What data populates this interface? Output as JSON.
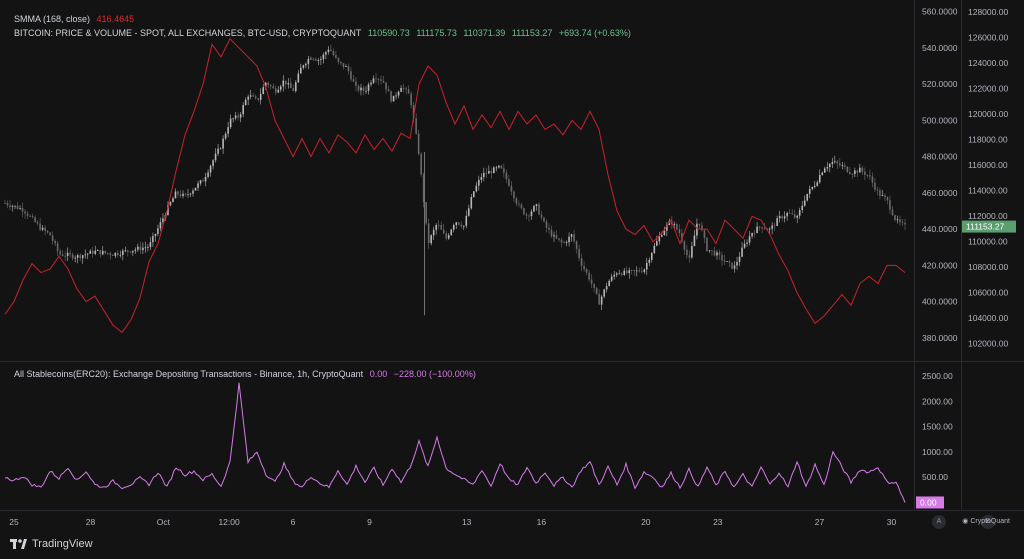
{
  "header": {
    "smma_label": "SMMA (168, close)",
    "smma_value": "416.4645",
    "symbol": "BITCOIN: PRICE & VOLUME - SPOT, ALL EXCHANGES, BTC-USD, CRYPTOQUANT",
    "open": "110590.73",
    "high": "111175.73",
    "low": "110371.39",
    "close": "111153.27",
    "change": "+693.74 (+0.63%)"
  },
  "lower_header": {
    "title": "All Stablecoins(ERC20): Exchange Depositing Transactions - Binance, 1h, CryptoQuant",
    "value": "0.00",
    "change": "−228.00 (−100.00%)"
  },
  "footer": {
    "brand": "TradingView",
    "cq_brand": "CryptoQuant",
    "btn_a": "A",
    "btn_b": "B"
  },
  "colors": {
    "bg": "#131314",
    "smma": "#c8232c",
    "candle_up": "#b8b8b8",
    "candle_dn": "#6b6b6b",
    "volume_line": "#d67be8",
    "price_tag": "#5a9e6f"
  },
  "chart_data": {
    "type": "line",
    "x_ticks": [
      "25",
      "28",
      "Oct",
      "12:00",
      "6",
      "9",
      "13",
      "16",
      "20",
      "23",
      "27",
      "30"
    ],
    "upper_panel": {
      "left_axis": {
        "ticks": [
          "560.0000",
          "540.0000",
          "520.0000",
          "500.0000",
          "480.0000",
          "460.0000",
          "440.0000",
          "420.0000",
          "400.0000",
          "380.0000"
        ],
        "ylim": [
          370,
          562
        ]
      },
      "right_axis": {
        "ticks": [
          "128000.00",
          "126000.00",
          "124000.00",
          "122000.00",
          "120000.00",
          "118000.00",
          "116000.00",
          "114000.00",
          "112000.00",
          "110000.00",
          "108000.00",
          "106000.00",
          "104000.00",
          "102000.00"
        ],
        "ylim": [
          101000,
          128300
        ]
      },
      "price_series": {
        "name": "BTC-USD",
        "last_value": "111153.27",
        "points": [
          [
            0,
            113000
          ],
          [
            2,
            112500
          ],
          [
            4,
            111000
          ],
          [
            5,
            110500
          ],
          [
            6,
            109000
          ],
          [
            8,
            108800
          ],
          [
            10,
            109200
          ],
          [
            12,
            109000
          ],
          [
            14,
            109300
          ],
          [
            16,
            109600
          ],
          [
            17,
            111000
          ],
          [
            18,
            112500
          ],
          [
            19,
            113800
          ],
          [
            20,
            113500
          ],
          [
            22,
            114800
          ],
          [
            23,
            116200
          ],
          [
            24,
            117500
          ],
          [
            25,
            119500
          ],
          [
            26,
            119800
          ],
          [
            27,
            121500
          ],
          [
            28,
            121000
          ],
          [
            29,
            122500
          ],
          [
            30,
            121800
          ],
          [
            31,
            122600
          ],
          [
            32,
            121800
          ],
          [
            33,
            123800
          ],
          [
            34,
            124500
          ],
          [
            35,
            124200
          ],
          [
            36,
            125200
          ],
          [
            37,
            124000
          ],
          [
            38,
            123600
          ],
          [
            39,
            122000
          ],
          [
            40,
            121800
          ],
          [
            41,
            123000
          ],
          [
            42,
            122600
          ],
          [
            43,
            121000
          ],
          [
            44,
            122200
          ],
          [
            45,
            121400
          ],
          [
            46,
            116800
          ],
          [
            47,
            109800
          ],
          [
            48,
            111400
          ],
          [
            49,
            110200
          ],
          [
            50,
            111600
          ],
          [
            51,
            111200
          ],
          [
            52,
            113800
          ],
          [
            53,
            115200
          ],
          [
            54,
            115500
          ],
          [
            55,
            115800
          ],
          [
            56,
            114500
          ],
          [
            57,
            112800
          ],
          [
            58,
            112000
          ],
          [
            59,
            112800
          ],
          [
            60,
            111200
          ],
          [
            61,
            110300
          ],
          [
            62,
            109800
          ],
          [
            63,
            110500
          ],
          [
            64,
            108300
          ],
          [
            65,
            107000
          ],
          [
            66,
            105200
          ],
          [
            67,
            106800
          ],
          [
            68,
            107600
          ],
          [
            69,
            107500
          ],
          [
            70,
            107600
          ],
          [
            71,
            107800
          ],
          [
            72,
            109400
          ],
          [
            73,
            110700
          ],
          [
            74,
            111600
          ],
          [
            75,
            110600
          ],
          [
            76,
            108400
          ],
          [
            77,
            111800
          ],
          [
            78,
            109400
          ],
          [
            79,
            109000
          ],
          [
            80,
            108400
          ],
          [
            81,
            107900
          ],
          [
            82,
            109500
          ],
          [
            83,
            110700
          ],
          [
            84,
            111200
          ],
          [
            85,
            110900
          ],
          [
            86,
            111800
          ],
          [
            87,
            112200
          ],
          [
            88,
            111800
          ],
          [
            89,
            113600
          ],
          [
            90,
            114500
          ],
          [
            91,
            115800
          ],
          [
            92,
            116200
          ],
          [
            93,
            115900
          ],
          [
            94,
            115400
          ],
          [
            95,
            115600
          ],
          [
            96,
            115100
          ],
          [
            97,
            113800
          ],
          [
            98,
            113200
          ],
          [
            99,
            111600
          ],
          [
            100,
            111150
          ]
        ]
      },
      "smma_series": {
        "name": "SMMA (168, close)",
        "last_value": "416.4645",
        "points": [
          [
            0,
            393
          ],
          [
            1,
            400
          ],
          [
            2,
            412
          ],
          [
            3,
            421
          ],
          [
            4,
            416
          ],
          [
            5,
            418
          ],
          [
            6,
            425
          ],
          [
            7,
            418
          ],
          [
            8,
            407
          ],
          [
            9,
            400
          ],
          [
            10,
            403
          ],
          [
            11,
            395
          ],
          [
            12,
            387
          ],
          [
            13,
            383
          ],
          [
            14,
            390
          ],
          [
            15,
            402
          ],
          [
            16,
            422
          ],
          [
            17,
            432
          ],
          [
            18,
            450
          ],
          [
            19,
            472
          ],
          [
            20,
            492
          ],
          [
            21,
            505
          ],
          [
            22,
            520
          ],
          [
            23,
            542
          ],
          [
            24,
            535
          ],
          [
            25,
            545
          ],
          [
            26,
            540
          ],
          [
            27,
            535
          ],
          [
            28,
            530
          ],
          [
            29,
            518
          ],
          [
            30,
            500
          ],
          [
            31,
            490
          ],
          [
            32,
            480
          ],
          [
            33,
            490
          ],
          [
            34,
            480
          ],
          [
            35,
            490
          ],
          [
            36,
            482
          ],
          [
            37,
            492
          ],
          [
            38,
            488
          ],
          [
            39,
            482
          ],
          [
            40,
            492
          ],
          [
            41,
            484
          ],
          [
            42,
            490
          ],
          [
            43,
            483
          ],
          [
            44,
            493
          ],
          [
            45,
            490
          ],
          [
            46,
            520
          ],
          [
            47,
            530
          ],
          [
            48,
            525
          ],
          [
            49,
            510
          ],
          [
            50,
            498
          ],
          [
            51,
            508
          ],
          [
            52,
            495
          ],
          [
            53,
            503
          ],
          [
            54,
            496
          ],
          [
            55,
            505
          ],
          [
            56,
            495
          ],
          [
            57,
            505
          ],
          [
            58,
            498
          ],
          [
            59,
            503
          ],
          [
            60,
            495
          ],
          [
            61,
            498
          ],
          [
            62,
            492
          ],
          [
            63,
            500
          ],
          [
            64,
            495
          ],
          [
            65,
            505
          ],
          [
            66,
            495
          ],
          [
            67,
            470
          ],
          [
            68,
            450
          ],
          [
            69,
            440
          ],
          [
            70,
            437
          ],
          [
            71,
            442
          ],
          [
            72,
            433
          ],
          [
            73,
            438
          ],
          [
            74,
            445
          ],
          [
            75,
            432
          ],
          [
            76,
            445
          ],
          [
            77,
            440
          ],
          [
            78,
            440
          ],
          [
            79,
            432
          ],
          [
            80,
            445
          ],
          [
            81,
            440
          ],
          [
            82,
            435
          ],
          [
            83,
            447
          ],
          [
            84,
            445
          ],
          [
            85,
            437
          ],
          [
            86,
            426
          ],
          [
            87,
            417
          ],
          [
            88,
            405
          ],
          [
            89,
            396
          ],
          [
            90,
            388
          ],
          [
            91,
            392
          ],
          [
            92,
            398
          ],
          [
            93,
            404
          ],
          [
            94,
            398
          ],
          [
            95,
            410
          ],
          [
            96,
            414
          ],
          [
            97,
            410
          ],
          [
            98,
            420
          ],
          [
            99,
            420
          ],
          [
            100,
            416
          ]
        ]
      }
    },
    "lower_panel": {
      "axis": {
        "ticks": [
          "2500.00",
          "2000.00",
          "1500.00",
          "1000.00",
          "500.00"
        ],
        "ylim": [
          -50,
          2700
        ]
      },
      "series": {
        "name": "All Stablecoins(ERC20): Exchange Depositing Transactions - Binance",
        "last_value": "0.00",
        "points": [
          [
            0,
            500
          ],
          [
            1,
            430
          ],
          [
            2,
            520
          ],
          [
            3,
            350
          ],
          [
            4,
            300
          ],
          [
            5,
            620
          ],
          [
            6,
            480
          ],
          [
            7,
            700
          ],
          [
            8,
            430
          ],
          [
            9,
            620
          ],
          [
            10,
            350
          ],
          [
            11,
            300
          ],
          [
            12,
            420
          ],
          [
            13,
            300
          ],
          [
            14,
            360
          ],
          [
            15,
            480
          ],
          [
            16,
            360
          ],
          [
            17,
            600
          ],
          [
            18,
            300
          ],
          [
            19,
            700
          ],
          [
            20,
            550
          ],
          [
            21,
            620
          ],
          [
            22,
            450
          ],
          [
            23,
            560
          ],
          [
            24,
            320
          ],
          [
            25,
            800
          ],
          [
            26,
            2350
          ],
          [
            27,
            800
          ],
          [
            28,
            1000
          ],
          [
            29,
            560
          ],
          [
            30,
            400
          ],
          [
            31,
            760
          ],
          [
            32,
            420
          ],
          [
            33,
            300
          ],
          [
            34,
            520
          ],
          [
            35,
            380
          ],
          [
            36,
            300
          ],
          [
            37,
            640
          ],
          [
            38,
            350
          ],
          [
            39,
            720
          ],
          [
            40,
            400
          ],
          [
            41,
            680
          ],
          [
            42,
            340
          ],
          [
            43,
            680
          ],
          [
            44,
            400
          ],
          [
            45,
            700
          ],
          [
            46,
            1200
          ],
          [
            47,
            700
          ],
          [
            48,
            1300
          ],
          [
            49,
            680
          ],
          [
            50,
            560
          ],
          [
            51,
            450
          ],
          [
            52,
            350
          ],
          [
            53,
            650
          ],
          [
            54,
            320
          ],
          [
            55,
            780
          ],
          [
            56,
            450
          ],
          [
            57,
            350
          ],
          [
            58,
            700
          ],
          [
            59,
            380
          ],
          [
            60,
            600
          ],
          [
            61,
            340
          ],
          [
            62,
            500
          ],
          [
            63,
            300
          ],
          [
            64,
            640
          ],
          [
            65,
            800
          ],
          [
            66,
            350
          ],
          [
            67,
            700
          ],
          [
            68,
            350
          ],
          [
            69,
            750
          ],
          [
            70,
            300
          ],
          [
            71,
            600
          ],
          [
            72,
            500
          ],
          [
            73,
            300
          ],
          [
            74,
            580
          ],
          [
            75,
            300
          ],
          [
            76,
            650
          ],
          [
            77,
            300
          ],
          [
            78,
            700
          ],
          [
            79,
            330
          ],
          [
            80,
            620
          ],
          [
            81,
            300
          ],
          [
            82,
            550
          ],
          [
            83,
            300
          ],
          [
            84,
            700
          ],
          [
            85,
            350
          ],
          [
            86,
            600
          ],
          [
            87,
            300
          ],
          [
            88,
            820
          ],
          [
            89,
            300
          ],
          [
            90,
            750
          ],
          [
            91,
            340
          ],
          [
            92,
            1000
          ],
          [
            93,
            700
          ],
          [
            94,
            400
          ],
          [
            95,
            650
          ],
          [
            96,
            600
          ],
          [
            97,
            700
          ],
          [
            98,
            400
          ],
          [
            99,
            400
          ],
          [
            100,
            0
          ]
        ]
      }
    }
  }
}
